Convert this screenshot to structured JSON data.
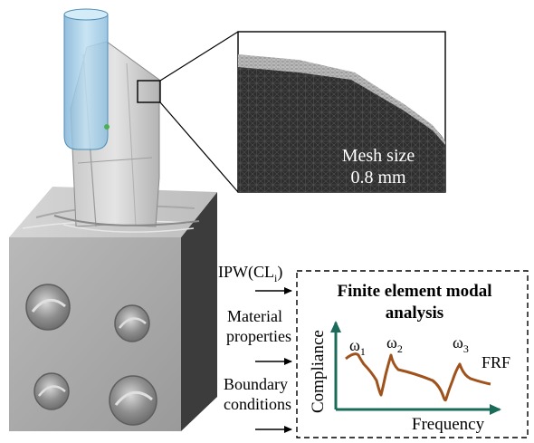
{
  "zoom_inset": {
    "mesh_label_line1": "Mesh size",
    "mesh_label_line2": "0.8 mm"
  },
  "inputs": {
    "ipw_prefix": "IPW(CL",
    "ipw_subscript": "i",
    "ipw_suffix": ")",
    "material_line1": "Material",
    "material_line2": "properties",
    "boundary_line1": "Boundary",
    "boundary_line2": "conditions"
  },
  "analysis_box": {
    "title_line1": "Finite element modal",
    "title_line2": "analysis",
    "y_axis_label": "Compliance",
    "x_axis_label": "Frequency",
    "curve_label": "FRF",
    "modes": [
      {
        "symbol": "ω",
        "subscript": "1"
      },
      {
        "symbol": "ω",
        "subscript": "2"
      },
      {
        "symbol": "ω",
        "subscript": "3"
      }
    ]
  },
  "colors": {
    "axis": "#1a6b5a",
    "frf_curve": "#a0521d",
    "tool": "#9cc8e4",
    "workpiece": "#a9a9a9"
  }
}
